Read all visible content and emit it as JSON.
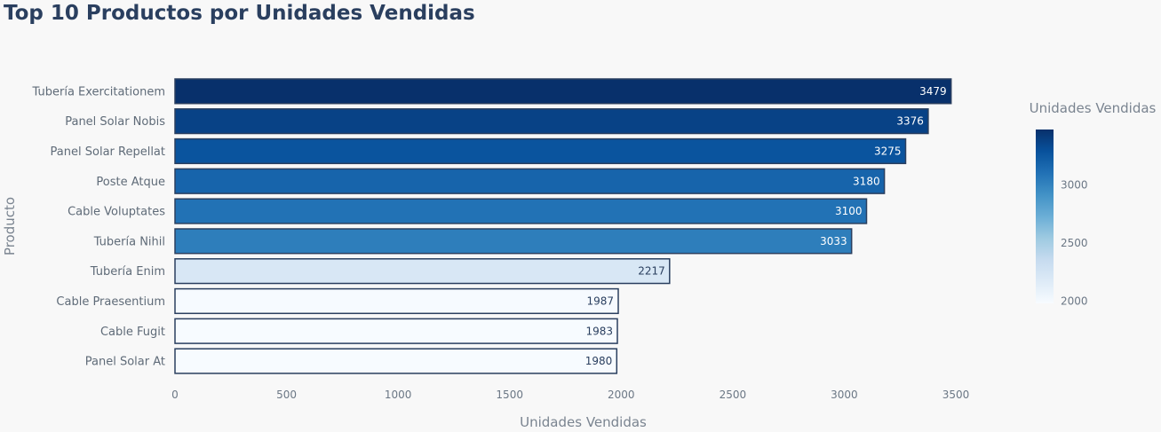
{
  "title": "Top 10 Productos por Unidades Vendidas",
  "chart_data": {
    "type": "bar",
    "orientation": "horizontal",
    "xlabel": "Unidades Vendidas",
    "ylabel": "Producto",
    "xlim": [
      0,
      3500
    ],
    "xticks": [
      0,
      500,
      1000,
      1500,
      2000,
      2500,
      3000,
      3500
    ],
    "categories": [
      "Tubería Exercitationem",
      "Panel Solar Nobis",
      "Panel Solar Repellat",
      "Poste Atque",
      "Cable Voluptates",
      "Tubería Nihil",
      "Tubería Enim",
      "Cable Praesentium",
      "Cable Fugit",
      "Panel Solar At"
    ],
    "values": [
      3479,
      3376,
      3275,
      3180,
      3100,
      3033,
      2217,
      1987,
      1983,
      1980
    ],
    "colorbar": {
      "title": "Unidades Vendidas",
      "range": [
        1980,
        3479
      ],
      "ticks": [
        2000,
        2500,
        3000
      ],
      "colorscale": "Blues"
    },
    "grid": false
  }
}
